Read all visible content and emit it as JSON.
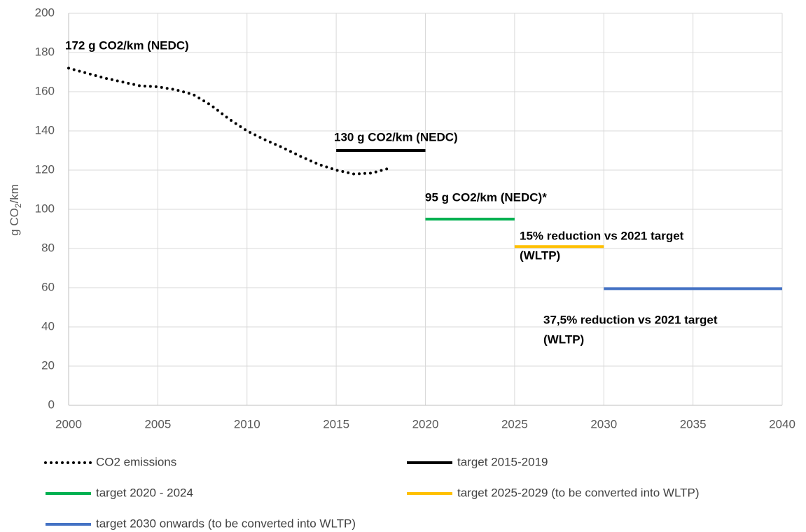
{
  "chart_data": {
    "type": "line",
    "ylabel_parts": [
      "g CO",
      "2",
      "/km"
    ],
    "xlim": [
      2000,
      2040
    ],
    "xticks": [
      2000,
      2005,
      2010,
      2015,
      2020,
      2025,
      2030,
      2035,
      2040
    ],
    "ylim": [
      0,
      200
    ],
    "yticks": [
      0,
      20,
      40,
      60,
      80,
      100,
      120,
      140,
      160,
      180,
      200
    ],
    "grid": true,
    "legend": "bottom",
    "series": [
      {
        "name": "CO2 emissions",
        "color": "#000000",
        "style": "dotted",
        "x": [
          2000,
          2001,
          2002,
          2003,
          2004,
          2005,
          2006,
          2007,
          2008,
          2009,
          2010,
          2011,
          2012,
          2013,
          2014,
          2015,
          2016,
          2017,
          2018
        ],
        "values": [
          172,
          169.5,
          167,
          165,
          163,
          162.5,
          161,
          158.5,
          153,
          146,
          140,
          135.5,
          131.5,
          127,
          123,
          120,
          118,
          118.5,
          121
        ]
      },
      {
        "name": "target 2015-2019",
        "color": "#000000",
        "style": "solid",
        "x": [
          2015,
          2020
        ],
        "values": [
          130,
          130
        ]
      },
      {
        "name": "target 2020 - 2024",
        "color": "#00b050",
        "style": "solid",
        "x": [
          2020,
          2025
        ],
        "values": [
          95,
          95
        ]
      },
      {
        "name": "target 2025-2029 (to be converted into WLTP)",
        "color": "#ffc000",
        "style": "solid",
        "x": [
          2025,
          2030
        ],
        "values": [
          81,
          81
        ]
      },
      {
        "name": "target 2030 onwards (to be converted into WLTP)",
        "color": "#4472c4",
        "style": "solid",
        "x": [
          2030,
          2040
        ],
        "values": [
          59.5,
          59.5
        ]
      }
    ],
    "annotations": [
      {
        "lines": [
          "172 g CO2/km (NEDC)"
        ]
      },
      {
        "lines": [
          "130 g CO2/km (NEDC)"
        ]
      },
      {
        "lines": [
          "95 g CO2/km (NEDC)*"
        ]
      },
      {
        "lines": [
          "15% reduction vs 2021 target",
          "(WLTP)"
        ]
      },
      {
        "lines": [
          "37,5% reduction vs 2021 target",
          "(WLTP)"
        ]
      }
    ]
  }
}
